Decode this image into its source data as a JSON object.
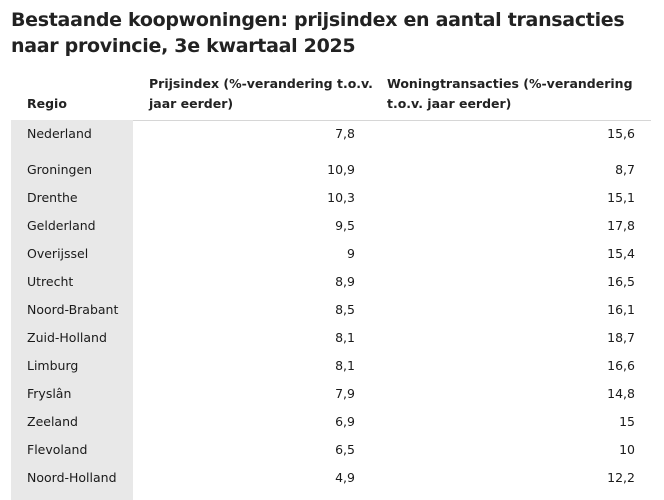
{
  "title": "Bestaande koopwoningen: prijsindex en aantal transacties naar provincie, 3e kwartaal 2025",
  "columns": {
    "region": "Regio",
    "price_index": "Prijsindex (%-verandering t.o.v. jaar eerder)",
    "transactions": "Woningtransacties (%-verandering t.o.v. jaar eerder)"
  },
  "rows": [
    {
      "region": "Nederland",
      "price_index": "7,8",
      "transactions": "15,6"
    },
    {
      "region": "Groningen",
      "price_index": "10,9",
      "transactions": "8,7"
    },
    {
      "region": "Drenthe",
      "price_index": "10,3",
      "transactions": "15,1"
    },
    {
      "region": "Gelderland",
      "price_index": "9,5",
      "transactions": "17,8"
    },
    {
      "region": "Overijssel",
      "price_index": "9",
      "transactions": "15,4"
    },
    {
      "region": "Utrecht",
      "price_index": "8,9",
      "transactions": "16,5"
    },
    {
      "region": "Noord-Brabant",
      "price_index": "8,5",
      "transactions": "16,1"
    },
    {
      "region": "Zuid-Holland",
      "price_index": "8,1",
      "transactions": "18,7"
    },
    {
      "region": "Limburg",
      "price_index": "8,1",
      "transactions": "16,6"
    },
    {
      "region": "Fryslân",
      "price_index": "7,9",
      "transactions": "14,8"
    },
    {
      "region": "Zeeland",
      "price_index": "6,9",
      "transactions": "15"
    },
    {
      "region": "Flevoland",
      "price_index": "6,5",
      "transactions": "10"
    },
    {
      "region": "Noord-Holland",
      "price_index": "4,9",
      "transactions": "12,2"
    }
  ]
}
